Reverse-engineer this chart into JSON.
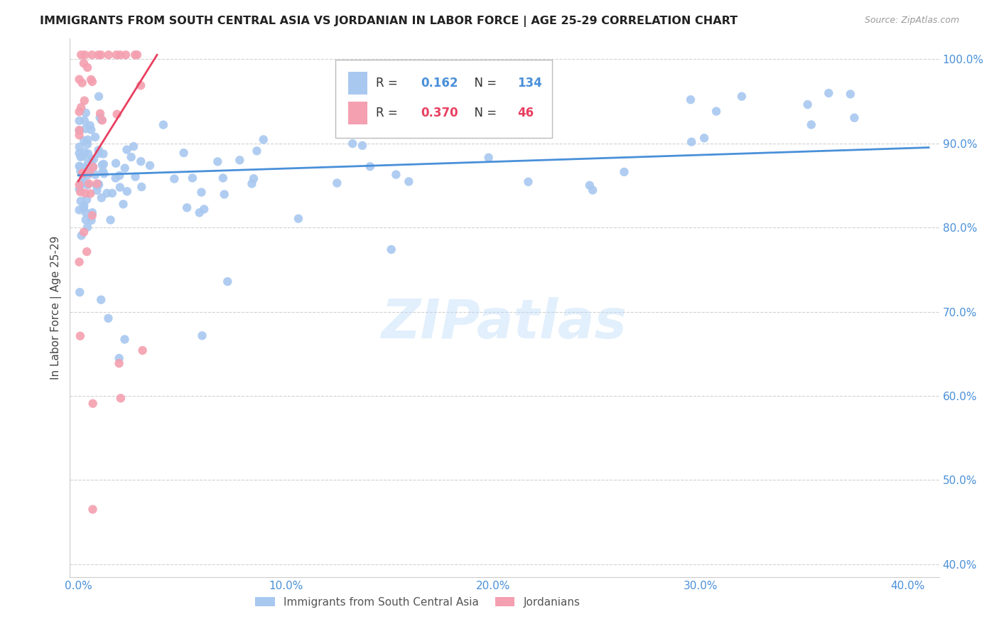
{
  "title": "IMMIGRANTS FROM SOUTH CENTRAL ASIA VS JORDANIAN IN LABOR FORCE | AGE 25-29 CORRELATION CHART",
  "source": "Source: ZipAtlas.com",
  "xlim": [
    -0.004,
    0.415
  ],
  "ylim": [
    0.385,
    1.025
  ],
  "ylabel": "In Labor Force | Age 25-29",
  "blue_R": 0.162,
  "blue_N": 134,
  "pink_R": 0.37,
  "pink_N": 46,
  "blue_color": "#a8c8f0",
  "pink_color": "#f4a0b0",
  "blue_line_color": "#4a90d9",
  "pink_line_color": "#e84060",
  "legend_label_blue": "Immigrants from South Central Asia",
  "legend_label_pink": "Jordanians",
  "background_color": "#ffffff",
  "grid_color": "#cccccc",
  "title_color": "#222222",
  "axis_tick_color": "#4a90d9",
  "watermark": "ZIPatlas",
  "blue_line_x0": 0.0,
  "blue_line_x1": 0.41,
  "blue_line_y0": 0.862,
  "blue_line_y1": 0.895,
  "pink_line_x0": 0.0,
  "pink_line_x1": 0.038,
  "pink_line_y0": 0.855,
  "pink_line_y1": 1.005
}
